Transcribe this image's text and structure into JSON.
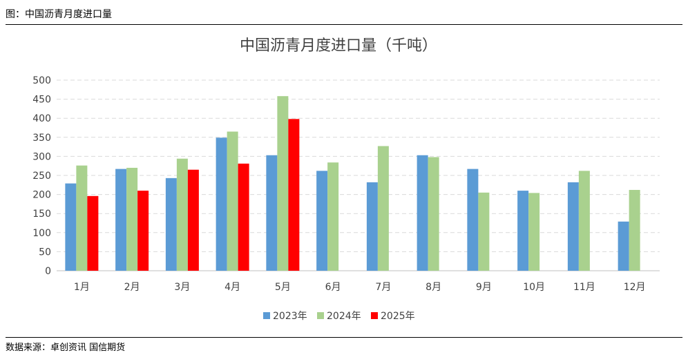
{
  "figure_caption": "图：中国沥青月度进口量",
  "source": "数据来源：卓创资讯 国信期货",
  "chart_data": {
    "type": "bar",
    "title": "中国沥青月度进口量（千吨）",
    "xlabel": "",
    "ylabel": "",
    "ylim": [
      0,
      500
    ],
    "yticks": [
      0,
      50,
      100,
      150,
      200,
      250,
      300,
      350,
      400,
      450,
      500
    ],
    "grid": true,
    "legend": "bottom",
    "categories": [
      "1月",
      "2月",
      "3月",
      "4月",
      "5月",
      "6月",
      "7月",
      "8月",
      "9月",
      "10月",
      "11月",
      "12月"
    ],
    "series": [
      {
        "name": "2023年",
        "color": "#5b9bd5",
        "values": [
          229,
          267,
          243,
          349,
          303,
          262,
          232,
          303,
          267,
          210,
          232,
          129
        ]
      },
      {
        "name": "2024年",
        "color": "#a9d18e",
        "values": [
          276,
          270,
          294,
          365,
          458,
          284,
          327,
          298,
          205,
          204,
          262,
          212
        ]
      },
      {
        "name": "2025年",
        "color": "#ff0000",
        "values": [
          196,
          210,
          265,
          281,
          398,
          null,
          null,
          null,
          null,
          null,
          null,
          null
        ]
      }
    ]
  }
}
